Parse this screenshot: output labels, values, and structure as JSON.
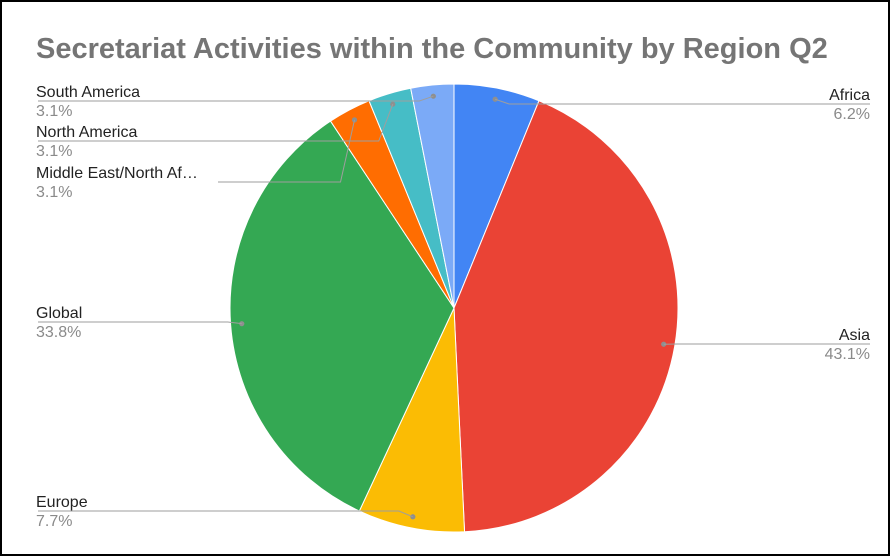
{
  "chart_data": {
    "type": "pie",
    "title": "Secretariat Activities within the Community by Region Q2",
    "slices": [
      {
        "label": "Africa",
        "display_label": "Africa",
        "percent_label": "6.2%",
        "value": 6.2,
        "color": "#4285F4"
      },
      {
        "label": "Asia",
        "display_label": "Asia",
        "percent_label": "43.1%",
        "value": 43.1,
        "color": "#EA4335"
      },
      {
        "label": "Europe",
        "display_label": "Europe",
        "percent_label": "7.7%",
        "value": 7.7,
        "color": "#FBBC04"
      },
      {
        "label": "Global",
        "display_label": "Global",
        "percent_label": "33.8%",
        "value": 33.8,
        "color": "#34A853"
      },
      {
        "label": "Middle East/North Africa",
        "display_label": "Middle East/North Af…",
        "percent_label": "3.1%",
        "value": 3.1,
        "color": "#FF6D01"
      },
      {
        "label": "North America",
        "display_label": "North America",
        "percent_label": "3.1%",
        "value": 3.1,
        "color": "#46BDC6"
      },
      {
        "label": "South America",
        "display_label": "South America",
        "percent_label": "3.1%",
        "value": 3.1,
        "color": "#7BAAF7"
      }
    ],
    "start_angle": "12 o'clock",
    "direction": "clockwise",
    "legend": "none",
    "labels": "outside with leader lines"
  }
}
